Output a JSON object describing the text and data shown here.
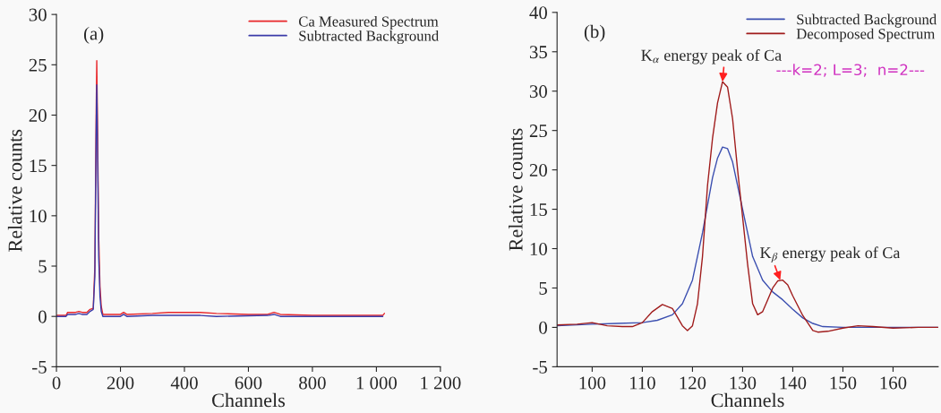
{
  "chart_data": [
    {
      "type": "line",
      "xlabel": "Channels",
      "ylabel": "Relative counts",
      "xlim": [
        0,
        1200
      ],
      "xticks": [
        0,
        200,
        400,
        600,
        800,
        {
          "value": 1000,
          "label": "1 000"
        },
        {
          "value": 1200,
          "label": "1 200"
        }
      ],
      "ylim": [
        -5,
        30
      ],
      "yticks": [
        -5,
        0,
        5,
        10,
        15,
        20,
        25,
        30
      ],
      "grid": false,
      "legend": "top right",
      "annotations": [
        "(a)"
      ],
      "series": [
        {
          "name": "Ca Measured Spectrum",
          "color": "#e8262a",
          "x": [
            0,
            30,
            35,
            60,
            70,
            80,
            95,
            105,
            115,
            120,
            124,
            126,
            128,
            132,
            136,
            140,
            145,
            200,
            210,
            220,
            300,
            350,
            450,
            500,
            600,
            660,
            680,
            700,
            800,
            900,
            1020,
            1025
          ],
          "values": [
            0.1,
            0.1,
            0.4,
            0.4,
            0.5,
            0.4,
            0.4,
            0.7,
            0.8,
            5,
            20,
            25.4,
            20,
            8,
            3,
            1,
            0.2,
            0.2,
            0.4,
            0.2,
            0.3,
            0.4,
            0.4,
            0.3,
            0.2,
            0.2,
            0.4,
            0.2,
            0.1,
            0.1,
            0.1,
            0.3
          ]
        },
        {
          "name": "Subtracted Background",
          "color": "#3a3aa8",
          "x": [
            0,
            30,
            35,
            60,
            70,
            80,
            95,
            105,
            115,
            120,
            124,
            126,
            128,
            132,
            136,
            140,
            145,
            200,
            210,
            220,
            300,
            450,
            500,
            660,
            680,
            700,
            800,
            1020
          ],
          "values": [
            0,
            0,
            0.2,
            0.2,
            0.3,
            0.2,
            0.2,
            0.5,
            0.7,
            4,
            18,
            23,
            18,
            6,
            2,
            0.5,
            0,
            0,
            0.2,
            0,
            0.1,
            0.1,
            0,
            0.1,
            0.2,
            0,
            0,
            0
          ]
        }
      ]
    },
    {
      "type": "line",
      "xlabel": "Channels",
      "ylabel": "Relative counts",
      "xlim": [
        93,
        169
      ],
      "xticks": [
        100,
        110,
        120,
        130,
        140,
        150,
        160
      ],
      "ylim": [
        -5,
        40
      ],
      "yticks": [
        -5,
        0,
        5,
        10,
        15,
        20,
        25,
        30,
        35,
        40
      ],
      "grid": false,
      "legend": "top right",
      "annotations": [
        "(b)",
        "---k=2; L=3;  n=2---",
        {
          "text": "K$_{α}$ energy peak of Ca",
          "x": 126,
          "y": 31.2
        },
        {
          "text": "K$_{β}$ energy peak of Ca",
          "x": 137.5,
          "y": 6
        }
      ],
      "series": [
        {
          "name": "Subtracted Background",
          "color": "#3b4fb0",
          "x": [
            93,
            100,
            105,
            110,
            113,
            116,
            118,
            120,
            122,
            124,
            125,
            126,
            127,
            128,
            130,
            132,
            134,
            136,
            138,
            140,
            142,
            144,
            146,
            150,
            160,
            169
          ],
          "values": [
            0.2,
            0.4,
            0.5,
            0.6,
            0.9,
            1.6,
            3,
            6,
            12,
            19,
            21.5,
            22.9,
            22.7,
            21,
            15,
            9,
            6,
            4.5,
            3.5,
            2.3,
            1.2,
            0.5,
            0.1,
            0,
            0,
            0
          ]
        },
        {
          "name": "Decomposed Spectrum",
          "color": "#a01c1c",
          "x": [
            93,
            97,
            100,
            103,
            106,
            108,
            110,
            112,
            114,
            116,
            118,
            119,
            120,
            121,
            122,
            123,
            124,
            125,
            126,
            127,
            128,
            129,
            130,
            131,
            132,
            133,
            134,
            135,
            136,
            137,
            138,
            139,
            140,
            142,
            144,
            145,
            147,
            150,
            153,
            156,
            160,
            165,
            169
          ],
          "values": [
            0.3,
            0.4,
            0.6,
            0.2,
            0.1,
            0.1,
            0.6,
            2,
            2.9,
            2.4,
            0.2,
            -0.4,
            0.2,
            3,
            9,
            18,
            24,
            28.5,
            31.2,
            30.5,
            26.5,
            20,
            14,
            8,
            3,
            1.6,
            2,
            3.5,
            5,
            5.9,
            6,
            5.4,
            4,
            1.5,
            -0.4,
            -0.6,
            -0.5,
            -0.1,
            0.2,
            0.1,
            -0.1,
            0,
            0
          ]
        }
      ]
    }
  ]
}
